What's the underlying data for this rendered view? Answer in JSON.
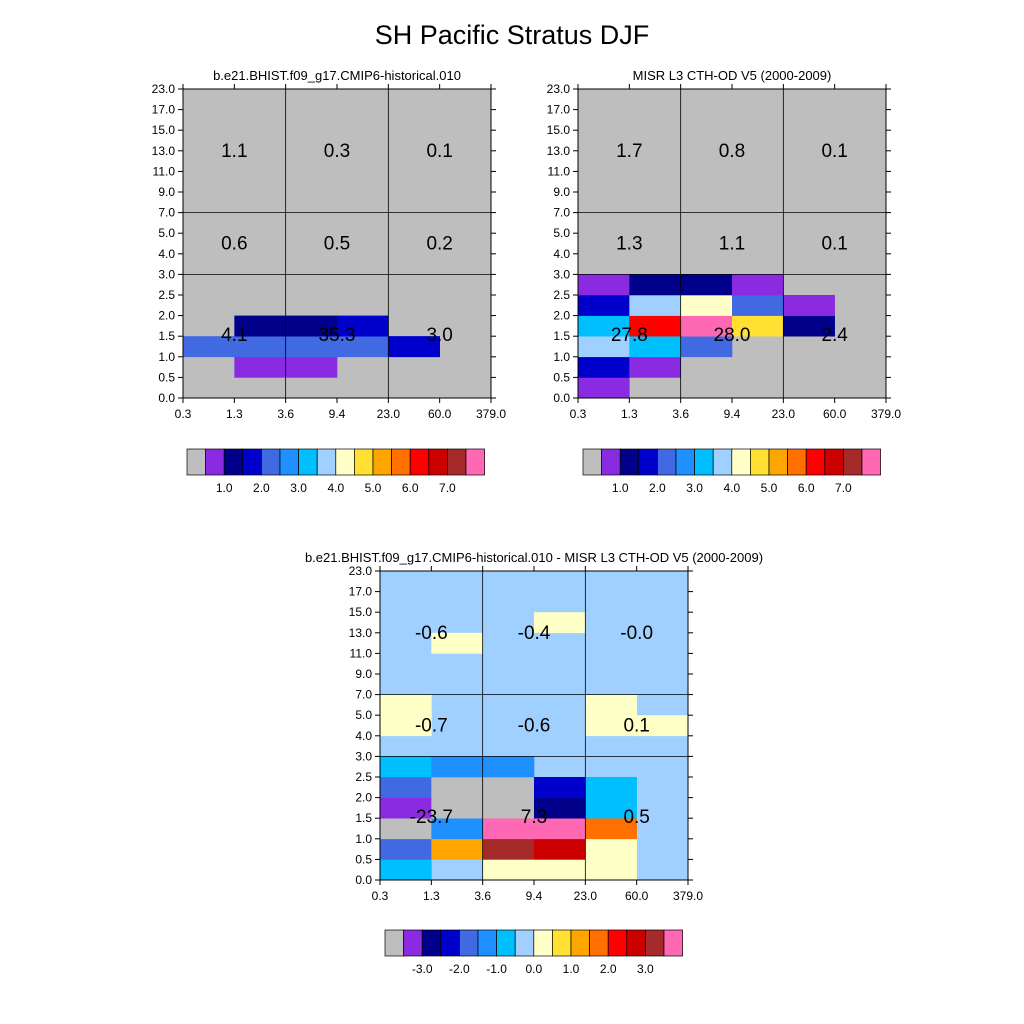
{
  "main_title": "SH Pacific Stratus DJF",
  "axes": {
    "x_ticks": [
      "0.3",
      "1.3",
      "3.6",
      "9.4",
      "23.0",
      "60.0",
      "379.0"
    ],
    "y_ticks": [
      "0.0",
      "0.5",
      "1.0",
      "1.5",
      "2.0",
      "2.5",
      "3.0",
      "4.0",
      "5.0",
      "7.0",
      "9.0",
      "11.0",
      "13.0",
      "15.0",
      "17.0",
      "23.0"
    ]
  },
  "colors": {
    "palette": [
      "#bebebe",
      "#8a2be2",
      "#00008b",
      "#0000cd",
      "#4169e1",
      "#1e90ff",
      "#00bfff",
      "#a0d0ff",
      "#ffffc8",
      "#ffe033",
      "#ffa500",
      "#ff7000",
      "#ff0000",
      "#cd0000",
      "#a52a2a",
      "#ff69b4"
    ],
    "background_missing": "#bebebe",
    "background_zero_diff": "#a0d0ff"
  },
  "chart_data": [
    {
      "type": "heatmap",
      "title": "b.e21.BHIST.f09_g17.CMIP6-historical.010",
      "xlabel": "",
      "ylabel": "",
      "grid": true,
      "background_color_index": 0,
      "colorbar_labels": [
        "1.0",
        "2.0",
        "3.0",
        "4.0",
        "5.0",
        "6.0",
        "7.0"
      ],
      "cells": [
        [
          1,
          1,
          1,
          3
        ],
        [
          1,
          2,
          1,
          3
        ],
        [
          2,
          2,
          4,
          15
        ],
        [
          2,
          3,
          4,
          15
        ],
        [
          2,
          4,
          4,
          3
        ],
        [
          2,
          4,
          3,
          4
        ],
        [
          2,
          0,
          4,
          7
        ],
        [
          2,
          1,
          4,
          6
        ],
        [
          3,
          1,
          2,
          2
        ],
        [
          3,
          2,
          2,
          3
        ],
        [
          3,
          3,
          3,
          1
        ]
      ],
      "summary": [
        {
          "row": 2,
          "col": 0,
          "label": "1.1"
        },
        {
          "row": 2,
          "col": 1,
          "label": "0.3"
        },
        {
          "row": 2,
          "col": 2,
          "label": "0.1"
        },
        {
          "row": 1,
          "col": 0,
          "label": "0.6"
        },
        {
          "row": 1,
          "col": 1,
          "label": "0.5"
        },
        {
          "row": 1,
          "col": 2,
          "label": "0.2"
        },
        {
          "row": 0,
          "col": 0,
          "label": "4.1"
        },
        {
          "row": 0,
          "col": 1,
          "label": "35.3"
        },
        {
          "row": 0,
          "col": 2,
          "label": "3.0"
        }
      ]
    },
    {
      "type": "heatmap",
      "title": "MISR L3 CTH-OD V5 (2000-2009)",
      "xlabel": "",
      "ylabel": "",
      "grid": true,
      "background_color_index": 0,
      "colorbar_labels": [
        "1.0",
        "2.0",
        "3.0",
        "4.0",
        "5.0",
        "6.0",
        "7.0"
      ],
      "cells": [
        [
          0,
          0,
          1
        ],
        [
          1,
          0,
          3
        ],
        [
          1,
          1,
          1
        ],
        [
          2,
          0,
          7
        ],
        [
          2,
          1,
          6
        ],
        [
          2,
          2,
          4
        ],
        [
          3,
          0,
          6
        ],
        [
          3,
          1,
          12
        ],
        [
          3,
          2,
          15
        ],
        [
          3,
          3,
          9
        ],
        [
          3,
          4,
          2
        ],
        [
          4,
          0,
          3
        ],
        [
          4,
          1,
          7
        ],
        [
          4,
          2,
          8
        ],
        [
          4,
          3,
          4
        ],
        [
          4,
          4,
          1
        ],
        [
          5,
          0,
          1
        ],
        [
          5,
          1,
          2
        ],
        [
          5,
          2,
          2
        ],
        [
          5,
          3,
          1
        ]
      ],
      "summary": [
        {
          "row": 2,
          "col": 0,
          "label": "1.7"
        },
        {
          "row": 2,
          "col": 1,
          "label": "0.8"
        },
        {
          "row": 2,
          "col": 2,
          "label": "0.1"
        },
        {
          "row": 1,
          "col": 0,
          "label": "1.3"
        },
        {
          "row": 1,
          "col": 1,
          "label": "1.1"
        },
        {
          "row": 1,
          "col": 2,
          "label": "0.1"
        },
        {
          "row": 0,
          "col": 0,
          "label": "27.8"
        },
        {
          "row": 0,
          "col": 1,
          "label": "28.0"
        },
        {
          "row": 0,
          "col": 2,
          "label": "2.4"
        }
      ]
    },
    {
      "type": "heatmap",
      "title": "b.e21.BHIST.f09_g17.CMIP6-historical.010 - MISR L3 CTH-OD V5 (2000-2009)",
      "xlabel": "",
      "ylabel": "",
      "grid": true,
      "background_color_index": 7,
      "colorbar_labels": [
        "-3.0",
        "-2.0",
        "-1.0",
        "0.0",
        "1.0",
        "2.0",
        "3.0"
      ],
      "cells": [
        [
          0,
          0,
          6
        ],
        [
          0,
          2,
          8
        ],
        [
          0,
          3,
          8
        ],
        [
          0,
          4,
          8
        ],
        [
          1,
          0,
          4
        ],
        [
          1,
          1,
          10
        ],
        [
          1,
          2,
          14
        ],
        [
          1,
          3,
          13
        ],
        [
          1,
          4,
          8
        ],
        [
          2,
          0,
          0
        ],
        [
          2,
          1,
          5
        ],
        [
          2,
          2,
          15
        ],
        [
          2,
          3,
          15
        ],
        [
          2,
          4,
          11
        ],
        [
          3,
          0,
          1
        ],
        [
          3,
          1,
          0
        ],
        [
          3,
          2,
          0
        ],
        [
          3,
          3,
          2
        ],
        [
          3,
          4,
          6
        ],
        [
          4,
          0,
          4
        ],
        [
          4,
          1,
          0
        ],
        [
          4,
          2,
          0
        ],
        [
          4,
          3,
          3
        ],
        [
          4,
          4,
          6
        ],
        [
          5,
          0,
          6
        ],
        [
          5,
          1,
          5
        ],
        [
          5,
          2,
          5
        ],
        [
          7,
          0,
          8
        ],
        [
          7,
          4,
          8
        ],
        [
          7,
          5,
          8
        ],
        [
          8,
          0,
          8
        ],
        [
          8,
          4,
          8
        ],
        [
          11,
          1,
          8
        ],
        [
          12,
          3,
          8
        ]
      ],
      "summary": [
        {
          "row": 2,
          "col": 0,
          "label": "-0.6"
        },
        {
          "row": 2,
          "col": 1,
          "label": "-0.4"
        },
        {
          "row": 2,
          "col": 2,
          "label": "-0.0"
        },
        {
          "row": 1,
          "col": 0,
          "label": "-0.7"
        },
        {
          "row": 1,
          "col": 1,
          "label": "-0.6"
        },
        {
          "row": 1,
          "col": 2,
          "label": "0.1"
        },
        {
          "row": 0,
          "col": 0,
          "label": "-23.7"
        },
        {
          "row": 0,
          "col": 1,
          "label": "7.3"
        },
        {
          "row": 0,
          "col": 2,
          "label": "0.5"
        }
      ]
    }
  ]
}
